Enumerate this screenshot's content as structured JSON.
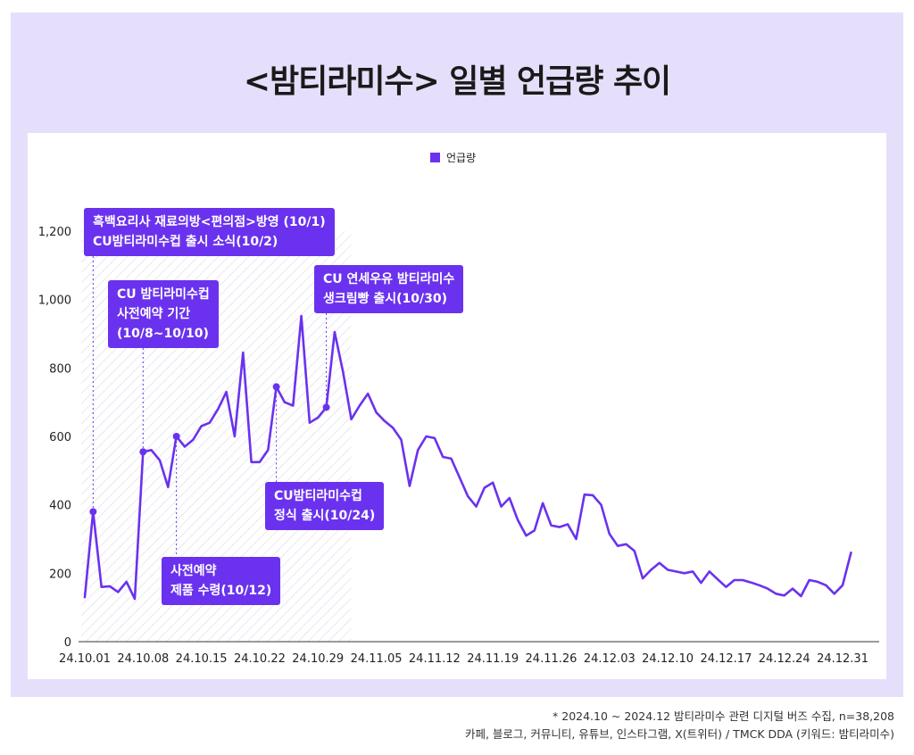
{
  "title": "<밤티라미수> 일별 언급량 추이",
  "chart_data": {
    "type": "line",
    "title": "<밤티라미수> 일별 언급량 추이",
    "legend": [
      "언급량"
    ],
    "legend_position": "top-center",
    "color": "#6a32ee",
    "ylim": [
      0,
      1200
    ],
    "y_ticks": [
      "0",
      "200",
      "400",
      "600",
      "800",
      "1,000",
      "1,200"
    ],
    "x_ticks": [
      "24.10.01",
      "24.10.08",
      "24.10.15",
      "24.10.22",
      "24.10.29",
      "24.11.05",
      "24.11.12",
      "24.11.19",
      "24.11.26",
      "24.12.03",
      "24.12.10",
      "24.12.17",
      "24.12.24",
      "24.12.31"
    ],
    "shaded_range_days": [
      0,
      32
    ],
    "series": [
      {
        "name": "언급량",
        "values": [
          130,
          380,
          160,
          162,
          145,
          175,
          125,
          555,
          560,
          530,
          452,
          600,
          570,
          590,
          630,
          640,
          680,
          730,
          600,
          845,
          525,
          525,
          560,
          745,
          700,
          690,
          952,
          640,
          655,
          685,
          905,
          790,
          650,
          690,
          725,
          670,
          645,
          625,
          590,
          455,
          560,
          600,
          595,
          540,
          535,
          480,
          425,
          395,
          450,
          465,
          395,
          420,
          355,
          310,
          325,
          405,
          340,
          335,
          343,
          300,
          430,
          428,
          400,
          315,
          280,
          285,
          265,
          185,
          210,
          230,
          210,
          205,
          200,
          205,
          172,
          205,
          182,
          160,
          180,
          180,
          173,
          165,
          155,
          140,
          135,
          155,
          133,
          180,
          175,
          165,
          140,
          165,
          260
        ]
      }
    ],
    "markers": [
      {
        "day": 1,
        "value": 380
      },
      {
        "day": 7,
        "value": 555
      },
      {
        "day": 11,
        "value": 600
      },
      {
        "day": 23,
        "value": 745
      },
      {
        "day": 29,
        "value": 685
      }
    ],
    "annotations": [
      {
        "lines": [
          "흑백요리사 재료의방<편의점>방영 (10/1)",
          "CU밤티라미수컵 출시 소식(10/2)"
        ],
        "day": 1
      },
      {
        "lines": [
          "CU 밤티라미수컵",
          "사전예약 기간",
          "(10/8~10/10)"
        ],
        "day": 7
      },
      {
        "lines": [
          "사전예약",
          "제품 수령(10/12)"
        ],
        "day": 11
      },
      {
        "lines": [
          "CU밤티라미수컵",
          "정식 출시(10/24)"
        ],
        "day": 23
      },
      {
        "lines": [
          "CU 연세우유 밤티라미수",
          "생크림빵 출시(10/30)"
        ],
        "day": 29
      }
    ]
  },
  "footnote": {
    "line1": "* 2024.10 ~ 2024.12 밤티라미수 관련 디지털 버즈 수집, n=38,208",
    "line2": "카페, 블로그, 커뮤니티, 유튜브, 인스타그램, X(트위터) / TMCK DDA (키워드: 밤티라미수)"
  }
}
